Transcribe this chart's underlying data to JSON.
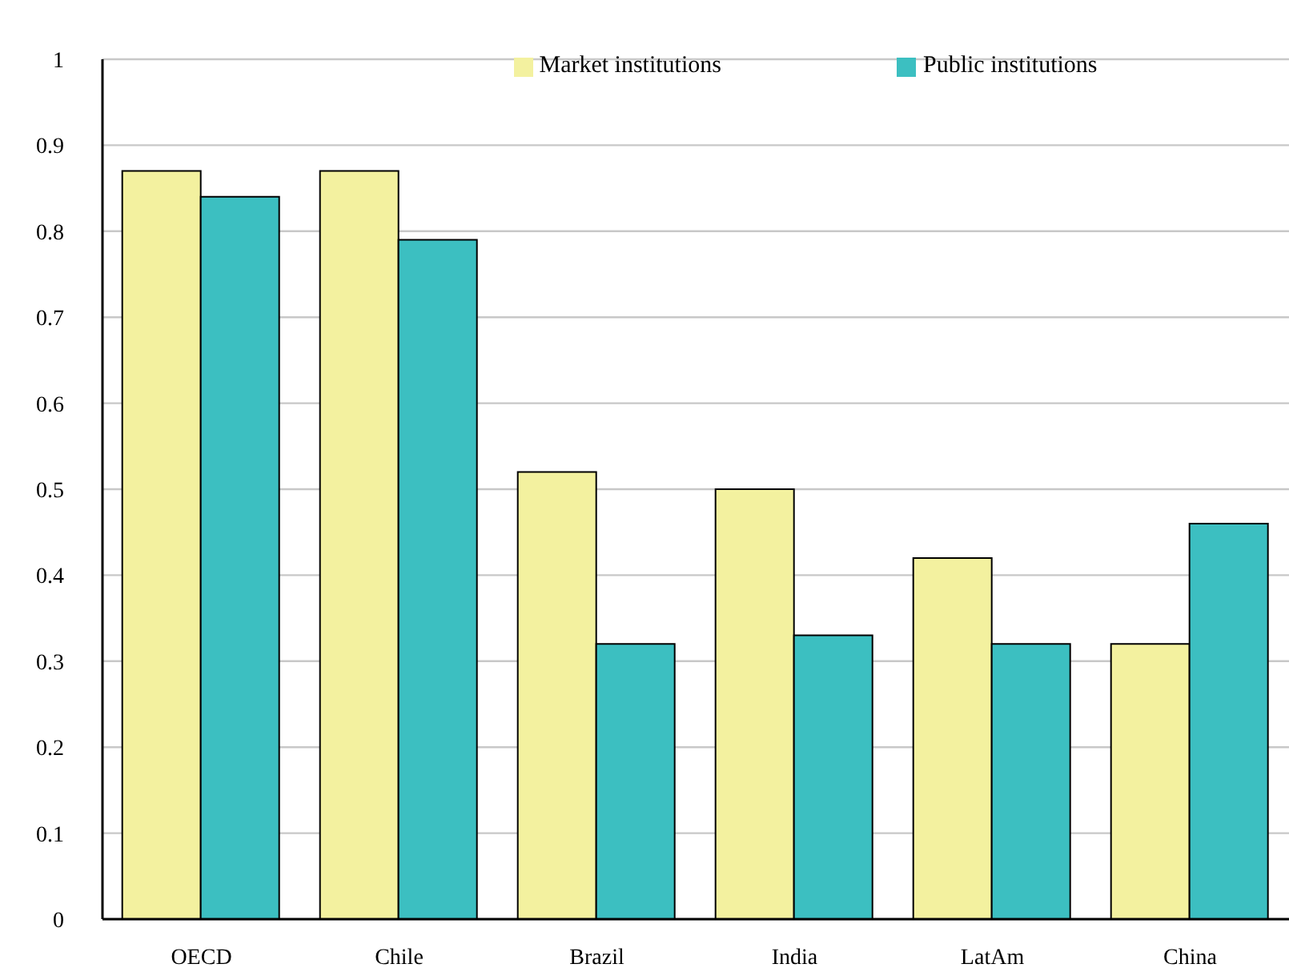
{
  "chart_data": {
    "type": "bar",
    "categories": [
      "OECD",
      "Chile",
      "Brazil",
      "India",
      "LatAm",
      "China"
    ],
    "series": [
      {
        "name": "Market institutions",
        "color": "#f3f19f",
        "values": [
          0.87,
          0.87,
          0.52,
          0.5,
          0.42,
          0.32
        ]
      },
      {
        "name": "Public institutions",
        "color": "#3cbfc1",
        "values": [
          0.84,
          0.79,
          0.32,
          0.33,
          0.32,
          0.46
        ]
      }
    ],
    "ylim": [
      0,
      1
    ],
    "yticks": [
      0,
      0.1,
      0.2,
      0.3,
      0.4,
      0.5,
      0.6,
      0.7,
      0.8,
      0.9,
      1
    ],
    "grid": "y",
    "legend": "top"
  }
}
